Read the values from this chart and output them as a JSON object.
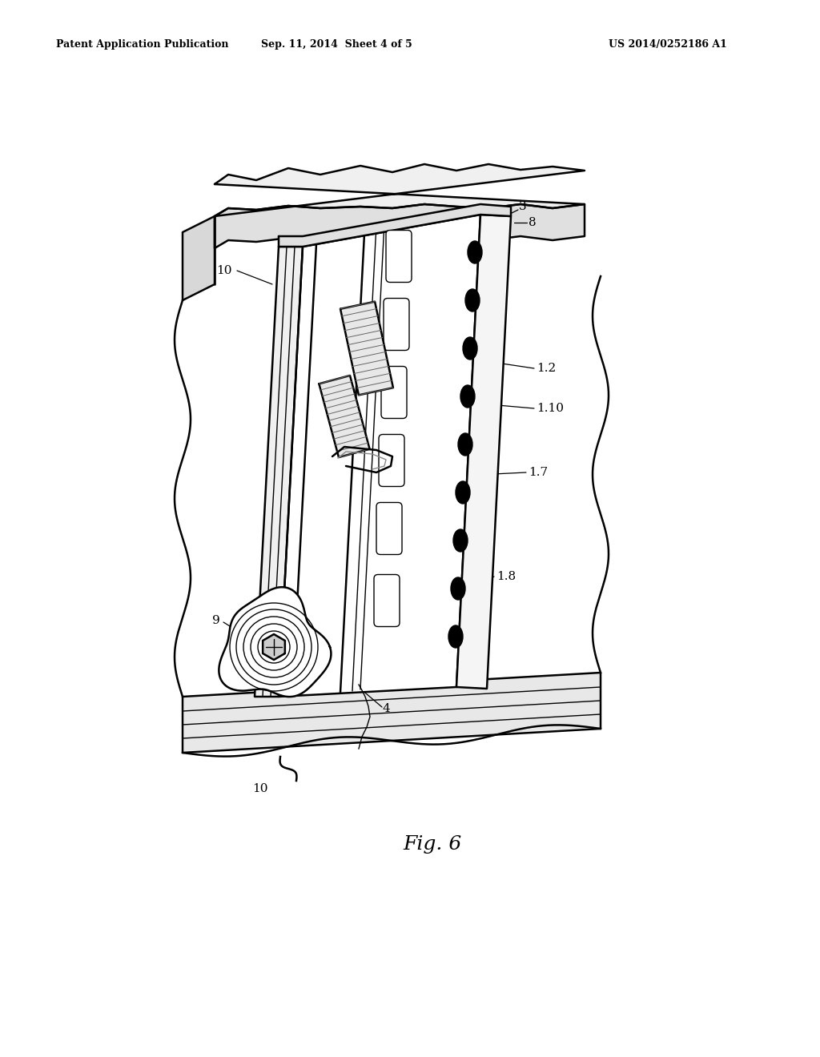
{
  "background_color": "#ffffff",
  "header_left": "Patent Application Publication",
  "header_center": "Sep. 11, 2014  Sheet 4 of 5",
  "header_right": "US 2014/0252186 A1",
  "figure_label": "Fig. 6",
  "text_color": "#000000",
  "line_color": "#000000",
  "lw_main": 1.8,
  "lw_thin": 1.0,
  "lw_thick": 2.2
}
